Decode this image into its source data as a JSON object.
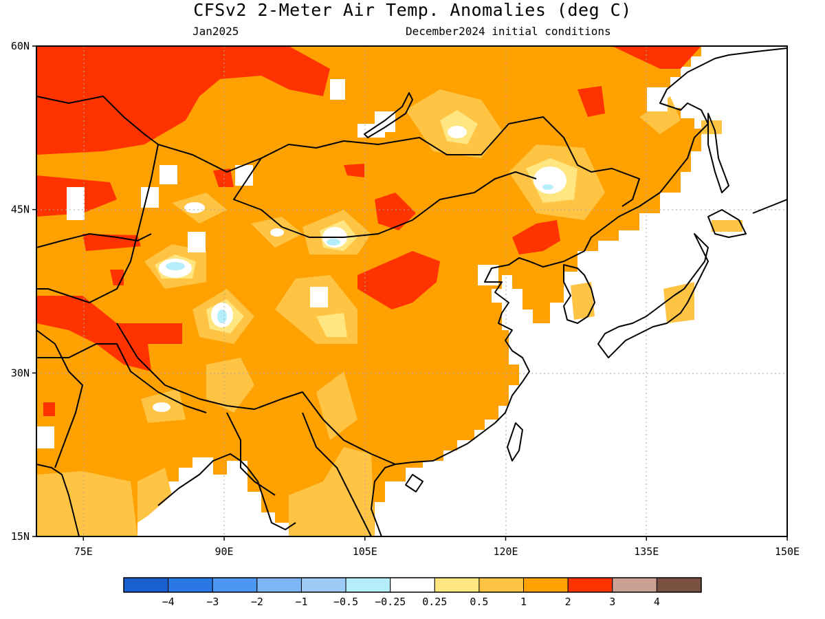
{
  "title": "CFSv2 2-Meter Air Temp. Anomalies (deg C)",
  "subtitle_left": "Jan2025",
  "subtitle_right": "December2024 initial conditions",
  "chart_data": {
    "type": "heatmap",
    "title": "CFSv2 2-Meter Air Temp. Anomalies (deg C)",
    "variable": "2-Meter Air Temp. Anomalies",
    "units": "deg C",
    "valid_month": "Jan2025",
    "initial_conditions": "December2024 initial conditions",
    "lon_range": [
      70,
      150
    ],
    "lat_range": [
      15,
      60
    ],
    "lon_ticks": [
      {
        "value": 75,
        "label": "75E"
      },
      {
        "value": 90,
        "label": "90E"
      },
      {
        "value": 105,
        "label": "105E"
      },
      {
        "value": 120,
        "label": "120E"
      },
      {
        "value": 135,
        "label": "135E"
      },
      {
        "value": 150,
        "label": "150E"
      }
    ],
    "lat_ticks": [
      {
        "value": 60,
        "label": "60N"
      },
      {
        "value": 45,
        "label": "45N"
      },
      {
        "value": 30,
        "label": "30N"
      },
      {
        "value": 15,
        "label": "15N"
      }
    ],
    "grid": true,
    "colorbar": {
      "boundaries": [
        "-4",
        "-3",
        "-2",
        "-1",
        "-0.5",
        "-0.25",
        "0.25",
        "0.5",
        "1",
        "2",
        "3",
        "4"
      ],
      "colors": [
        "#1a5fd0",
        "#2a78e6",
        "#4d97f0",
        "#7db5f5",
        "#9ccbf8",
        "#b4eefa",
        "#ffffff",
        "#ffe680",
        "#ffc444",
        "#ffa100",
        "#ff3300",
        "#c9a092",
        "#7a5040"
      ]
    },
    "features": [
      {
        "type": "warm",
        "lon": 73,
        "lat": 56,
        "value": 3
      },
      {
        "type": "warm",
        "lon": 108,
        "lat": 45,
        "value": 3
      },
      {
        "type": "warm",
        "lon": 110,
        "lat": 39.5,
        "value": 3
      },
      {
        "type": "warm",
        "lon": 126,
        "lat": 43,
        "value": 3
      },
      {
        "type": "warm",
        "lon": 131,
        "lat": 55,
        "value": 3
      },
      {
        "type": "warm",
        "lon": 85,
        "lat": 35,
        "value": 3
      },
      {
        "type": "cool",
        "lon": 125,
        "lat": 47.5,
        "value": -0.25
      },
      {
        "type": "cool",
        "lon": 102,
        "lat": 42.5,
        "value": -0.25
      },
      {
        "type": "cool",
        "lon": 83,
        "lat": 40.3,
        "value": -0.25
      },
      {
        "type": "cool",
        "lon": 89,
        "lat": 35.5,
        "value": -0.25
      }
    ]
  }
}
